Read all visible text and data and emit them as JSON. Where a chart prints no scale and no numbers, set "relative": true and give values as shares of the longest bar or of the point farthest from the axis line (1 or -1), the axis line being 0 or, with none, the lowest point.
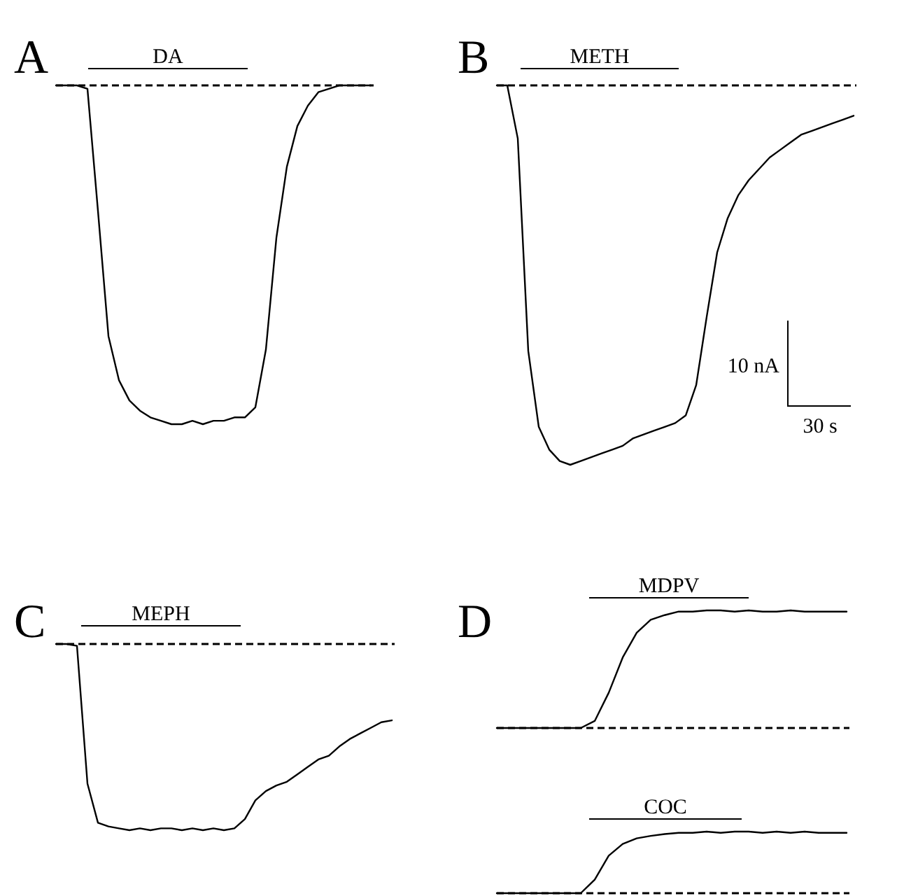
{
  "chart_data": [
    {
      "type": "line",
      "title": "A",
      "relative": true,
      "categories": [
        null,
        null,
        null,
        null,
        null,
        null,
        null,
        null,
        null,
        null,
        null,
        null,
        null,
        null,
        null,
        null,
        null,
        null,
        null,
        null,
        null,
        null,
        null,
        null,
        null,
        null,
        null,
        null,
        null,
        null,
        null
      ],
      "series": [
        {
          "color": "#000000",
          "values": [
            0,
            0,
            0,
            -0.01,
            -0.37,
            -0.74,
            -0.87,
            -0.93,
            -0.96,
            -0.98,
            -0.99,
            -1,
            -1,
            -0.99,
            -1,
            -0.99,
            -0.99,
            -0.98,
            -0.98,
            -0.95,
            -0.78,
            -0.45,
            -0.24,
            -0.12,
            -0.06,
            -0.02,
            -0.01,
            0,
            0,
            0,
            0
          ]
        }
      ],
      "ref_lines": [
        {
          "axis": "y",
          "value": 0,
          "line_style": "dashed",
          "color": "#000000"
        }
      ],
      "annotations": [
        "DA"
      ]
    },
    {
      "type": "line",
      "title": "B",
      "relative": true,
      "categories": [
        null,
        null,
        null,
        null,
        null,
        null,
        null,
        null,
        null,
        null,
        null,
        null,
        null,
        null,
        null,
        null,
        null,
        null,
        null,
        null,
        null,
        null,
        null,
        null,
        null,
        null,
        null,
        null,
        null,
        null,
        null,
        null,
        null,
        null,
        null
      ],
      "series": [
        {
          "color": "#000000",
          "values": [
            0,
            0,
            -0.14,
            -0.7,
            -0.9,
            -0.96,
            -0.99,
            -1,
            -0.99,
            -0.98,
            -0.97,
            -0.96,
            -0.95,
            -0.93,
            -0.92,
            -0.91,
            -0.9,
            -0.89,
            -0.87,
            -0.79,
            -0.61,
            -0.44,
            -0.35,
            -0.29,
            -0.25,
            -0.22,
            -0.19,
            -0.17,
            -0.15,
            -0.13,
            -0.12,
            -0.11,
            -0.1,
            -0.09,
            -0.08
          ]
        }
      ],
      "ref_lines": [
        {
          "axis": "y",
          "value": 0,
          "line_style": "dashed",
          "color": "#000000"
        }
      ],
      "annotations": [
        "METH",
        "10 nA",
        "30 s"
      ]
    },
    {
      "type": "line",
      "title": "C",
      "relative": true,
      "categories": [
        null,
        null,
        null,
        null,
        null,
        null,
        null,
        null,
        null,
        null,
        null,
        null,
        null,
        null,
        null,
        null,
        null,
        null,
        null,
        null,
        null,
        null,
        null,
        null,
        null,
        null,
        null,
        null,
        null,
        null,
        null,
        null,
        null
      ],
      "series": [
        {
          "color": "#000000",
          "values": [
            0,
            0,
            -0.01,
            -0.75,
            -0.96,
            -0.98,
            -0.99,
            -1,
            -0.99,
            -1,
            -0.99,
            -0.99,
            -1,
            -0.99,
            -1,
            -0.99,
            -1,
            -0.99,
            -0.94,
            -0.84,
            -0.79,
            -0.76,
            -0.74,
            -0.7,
            -0.66,
            -0.62,
            -0.6,
            -0.55,
            -0.51,
            -0.48,
            -0.45,
            -0.42,
            -0.41
          ]
        }
      ],
      "ref_lines": [
        {
          "axis": "y",
          "value": 0,
          "line_style": "dashed",
          "color": "#000000"
        }
      ],
      "annotations": [
        "MEPH"
      ]
    },
    {
      "type": "line",
      "title": "D",
      "relative": true,
      "categories": [
        null,
        null,
        null,
        null,
        null,
        null,
        null,
        null,
        null,
        null,
        null,
        null,
        null,
        null,
        null,
        null,
        null,
        null,
        null,
        null,
        null,
        null,
        null,
        null,
        null,
        null
      ],
      "series": [
        {
          "color": "#000000",
          "values": [
            0,
            0,
            0,
            0,
            0,
            0,
            0,
            0.06,
            0.3,
            0.6,
            0.81,
            0.92,
            0.96,
            0.99,
            0.99,
            1,
            1,
            0.99,
            1,
            0.99,
            0.99,
            1,
            0.99,
            0.99,
            0.99,
            0.99
          ]
        }
      ],
      "ref_lines": [
        {
          "axis": "y",
          "value": 0,
          "line_style": "dashed",
          "color": "#000000"
        }
      ],
      "annotations": [
        "MDPV"
      ]
    },
    {
      "type": "line",
      "relative": true,
      "categories": [
        null,
        null,
        null,
        null,
        null,
        null,
        null,
        null,
        null,
        null,
        null,
        null,
        null,
        null,
        null,
        null,
        null,
        null,
        null,
        null,
        null,
        null,
        null,
        null,
        null,
        null
      ],
      "series": [
        {
          "color": "#000000",
          "values": [
            0,
            0,
            0,
            0,
            0,
            0,
            0,
            0.22,
            0.61,
            0.8,
            0.89,
            0.93,
            0.96,
            0.98,
            0.98,
            1,
            0.98,
            1,
            1,
            0.98,
            1,
            0.98,
            1,
            0.98,
            0.98,
            0.98
          ]
        }
      ],
      "ref_lines": [
        {
          "axis": "y",
          "value": 0,
          "line_style": "dashed",
          "color": "#000000"
        }
      ],
      "annotations": [
        "COC"
      ]
    }
  ]
}
